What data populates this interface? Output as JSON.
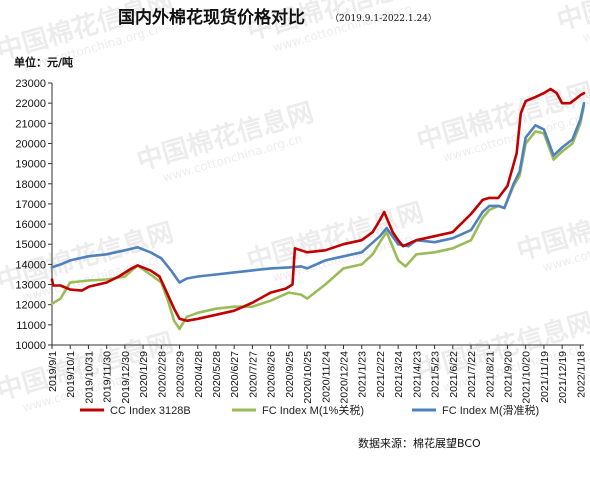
{
  "chart_data": {
    "type": "line",
    "title": "国内外棉花现货价格对比",
    "subtitle": "（2019.9.1-2022.1.24）",
    "unit_label": "单位：元/吨",
    "ylim": [
      10000,
      23000
    ],
    "yticks": [
      10000,
      11000,
      12000,
      13000,
      14000,
      15000,
      16000,
      17000,
      18000,
      19000,
      20000,
      21000,
      22000,
      23000
    ],
    "xticks": [
      "2019/9/1",
      "2019/10/1",
      "2019/10/31",
      "2019/11/30",
      "2019/12/30",
      "2020/1/29",
      "2020/2/28",
      "2020/3/29",
      "2020/4/28",
      "2020/5/28",
      "2020/6/27",
      "2020/7/27",
      "2020/8/26",
      "2020/9/25",
      "2020/10/25",
      "2020/11/24",
      "2020/12/24",
      "2021/1/23",
      "2021/2/22",
      "2021/3/24",
      "2021/4/23",
      "2021/5/23",
      "2021/6/22",
      "2021/7/22",
      "2021/8/21",
      "2021/9/20",
      "2021/10/20",
      "2021/11/19",
      "2021/12/19",
      "2022/1/18"
    ],
    "x_range": [
      "2019/9/1",
      "2022/1/24"
    ],
    "grid": false,
    "legend_position": "bottom",
    "series": [
      {
        "name": "CC Index 3128B",
        "color": "#c00000",
        "points": [
          [
            "2019/9/1",
            13250
          ],
          [
            "2019/9/3",
            12950
          ],
          [
            "2019/9/15",
            12950
          ],
          [
            "2019/10/1",
            12750
          ],
          [
            "2019/10/20",
            12700
          ],
          [
            "2019/11/1",
            12900
          ],
          [
            "2019/11/30",
            13100
          ],
          [
            "2019/12/20",
            13400
          ],
          [
            "2020/1/10",
            13800
          ],
          [
            "2020/1/20",
            13950
          ],
          [
            "2020/2/10",
            13700
          ],
          [
            "2020/2/25",
            13400
          ],
          [
            "2020/3/5",
            12800
          ],
          [
            "2020/3/20",
            11800
          ],
          [
            "2020/3/29",
            11300
          ],
          [
            "2020/4/10",
            11200
          ],
          [
            "2020/4/28",
            11300
          ],
          [
            "2020/5/28",
            11500
          ],
          [
            "2020/6/27",
            11700
          ],
          [
            "2020/7/27",
            12100
          ],
          [
            "2020/8/26",
            12600
          ],
          [
            "2020/9/20",
            12800
          ],
          [
            "2020/10/1",
            13000
          ],
          [
            "2020/10/5",
            14800
          ],
          [
            "2020/10/25",
            14600
          ],
          [
            "2020/11/24",
            14700
          ],
          [
            "2020/12/24",
            15000
          ],
          [
            "2021/1/23",
            15200
          ],
          [
            "2021/2/10",
            15600
          ],
          [
            "2021/2/22",
            16200
          ],
          [
            "2021/3/1",
            16600
          ],
          [
            "2021/3/15",
            15600
          ],
          [
            "2021/3/24",
            15200
          ],
          [
            "2021/4/1",
            14900
          ],
          [
            "2021/4/23",
            15200
          ],
          [
            "2021/5/23",
            15400
          ],
          [
            "2021/6/22",
            15600
          ],
          [
            "2021/7/22",
            16500
          ],
          [
            "2021/8/10",
            17200
          ],
          [
            "2021/8/21",
            17300
          ],
          [
            "2021/9/5",
            17300
          ],
          [
            "2021/9/20",
            17900
          ],
          [
            "2021/10/5",
            19500
          ],
          [
            "2021/10/12",
            21500
          ],
          [
            "2021/10/20",
            22100
          ],
          [
            "2021/11/5",
            22300
          ],
          [
            "2021/11/19",
            22500
          ],
          [
            "2021/11/30",
            22700
          ],
          [
            "2021/12/10",
            22500
          ],
          [
            "2021/12/19",
            22000
          ],
          [
            "2022/1/1",
            22000
          ],
          [
            "2022/1/10",
            22200
          ],
          [
            "2022/1/18",
            22400
          ],
          [
            "2022/1/24",
            22500
          ]
        ]
      },
      {
        "name": "FC Index M(1%关税)",
        "color": "#9bbb59",
        "points": [
          [
            "2019/9/1",
            12050
          ],
          [
            "2019/9/15",
            12300
          ],
          [
            "2019/10/1",
            13100
          ],
          [
            "2019/10/31",
            13200
          ],
          [
            "2019/11/30",
            13250
          ],
          [
            "2019/12/30",
            13400
          ],
          [
            "2020/1/20",
            13950
          ],
          [
            "2020/2/10",
            13500
          ],
          [
            "2020/2/28",
            13100
          ],
          [
            "2020/3/10",
            12200
          ],
          [
            "2020/3/20",
            11200
          ],
          [
            "2020/3/29",
            10800
          ],
          [
            "2020/4/10",
            11400
          ],
          [
            "2020/4/28",
            11600
          ],
          [
            "2020/5/28",
            11800
          ],
          [
            "2020/6/27",
            11900
          ],
          [
            "2020/7/27",
            11900
          ],
          [
            "2020/8/26",
            12200
          ],
          [
            "2020/9/25",
            12600
          ],
          [
            "2020/10/15",
            12500
          ],
          [
            "2020/10/25",
            12300
          ],
          [
            "2020/11/24",
            13000
          ],
          [
            "2020/12/24",
            13800
          ],
          [
            "2021/1/23",
            14000
          ],
          [
            "2021/2/10",
            14500
          ],
          [
            "2021/2/22",
            15100
          ],
          [
            "2021/3/5",
            15600
          ],
          [
            "2021/3/24",
            14200
          ],
          [
            "2021/4/5",
            13900
          ],
          [
            "2021/4/23",
            14500
          ],
          [
            "2021/5/23",
            14600
          ],
          [
            "2021/6/22",
            14800
          ],
          [
            "2021/7/22",
            15200
          ],
          [
            "2021/8/10",
            16300
          ],
          [
            "2021/8/21",
            16700
          ],
          [
            "2021/9/5",
            16900
          ],
          [
            "2021/9/15",
            16800
          ],
          [
            "2021/9/30",
            17900
          ],
          [
            "2021/10/10",
            18400
          ],
          [
            "2021/10/20",
            20000
          ],
          [
            "2021/11/5",
            20600
          ],
          [
            "2021/11/19",
            20500
          ],
          [
            "2021/12/5",
            19200
          ],
          [
            "2021/12/19",
            19600
          ],
          [
            "2022/1/5",
            20000
          ],
          [
            "2022/1/18",
            21000
          ],
          [
            "2022/1/24",
            21900
          ]
        ]
      },
      {
        "name": "FC Index M(滑准税)",
        "color": "#4f81bd",
        "points": [
          [
            "2019/9/1",
            13850
          ],
          [
            "2019/9/15",
            14000
          ],
          [
            "2019/10/1",
            14200
          ],
          [
            "2019/10/31",
            14400
          ],
          [
            "2019/11/30",
            14500
          ],
          [
            "2019/12/30",
            14700
          ],
          [
            "2020/1/20",
            14850
          ],
          [
            "2020/2/10",
            14600
          ],
          [
            "2020/2/28",
            14300
          ],
          [
            "2020/3/15",
            13700
          ],
          [
            "2020/3/29",
            13100
          ],
          [
            "2020/4/10",
            13300
          ],
          [
            "2020/4/28",
            13400
          ],
          [
            "2020/5/28",
            13500
          ],
          [
            "2020/6/27",
            13600
          ],
          [
            "2020/7/27",
            13700
          ],
          [
            "2020/8/26",
            13800
          ],
          [
            "2020/9/25",
            13850
          ],
          [
            "2020/10/15",
            13900
          ],
          [
            "2020/10/25",
            13800
          ],
          [
            "2020/11/24",
            14200
          ],
          [
            "2020/12/24",
            14400
          ],
          [
            "2021/1/23",
            14600
          ],
          [
            "2021/2/22",
            15400
          ],
          [
            "2021/3/5",
            15800
          ],
          [
            "2021/3/24",
            15000
          ],
          [
            "2021/4/10",
            14900
          ],
          [
            "2021/4/23",
            15200
          ],
          [
            "2021/5/23",
            15100
          ],
          [
            "2021/6/22",
            15300
          ],
          [
            "2021/7/22",
            15700
          ],
          [
            "2021/8/10",
            16600
          ],
          [
            "2021/8/21",
            16900
          ],
          [
            "2021/9/5",
            16900
          ],
          [
            "2021/9/15",
            16800
          ],
          [
            "2021/9/30",
            18000
          ],
          [
            "2021/10/10",
            18600
          ],
          [
            "2021/10/20",
            20300
          ],
          [
            "2021/11/5",
            20900
          ],
          [
            "2021/11/19",
            20700
          ],
          [
            "2021/12/5",
            19400
          ],
          [
            "2021/12/19",
            19800
          ],
          [
            "2022/1/5",
            20200
          ],
          [
            "2022/1/18",
            21200
          ],
          [
            "2022/1/24",
            22000
          ]
        ]
      }
    ]
  },
  "source_text": "数据来源：棉花展望BCO",
  "watermark": {
    "text": "中国棉花信息网",
    "url": "www.cottonchina.org.cn"
  }
}
